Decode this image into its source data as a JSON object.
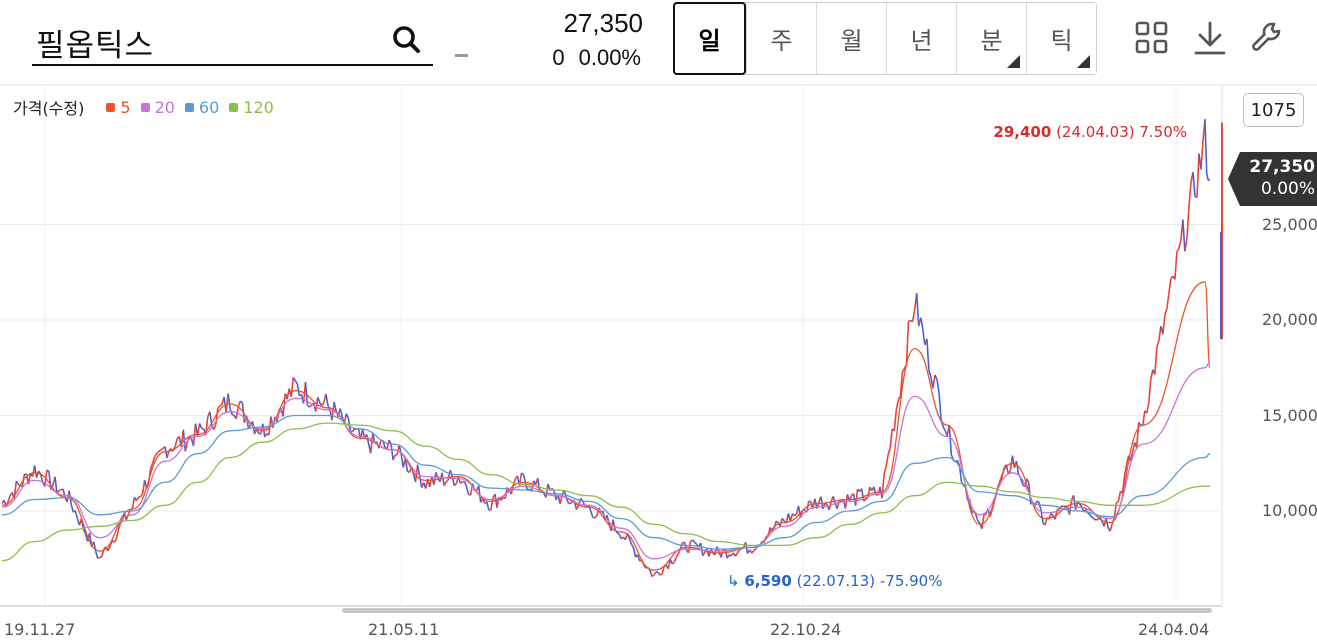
{
  "header": {
    "stock_name": "필옵틱스",
    "price": "27,350",
    "change": "0",
    "change_pct": "0.00%"
  },
  "period_tabs": [
    {
      "label": "일",
      "active": true,
      "has_menu": false
    },
    {
      "label": "주",
      "active": false,
      "has_menu": false
    },
    {
      "label": "월",
      "active": false,
      "has_menu": false
    },
    {
      "label": "년",
      "active": false,
      "has_menu": false
    },
    {
      "label": "분",
      "active": false,
      "has_menu": true
    },
    {
      "label": "틱",
      "active": false,
      "has_menu": true
    }
  ],
  "toolbar_icons": [
    "grid-layout-icon",
    "download-icon",
    "wrench-icon"
  ],
  "legend": {
    "title": "가격(수정)",
    "items": [
      {
        "label": "5",
        "color": "#e8542c"
      },
      {
        "label": "20",
        "color": "#c774d9"
      },
      {
        "label": "60",
        "color": "#5a9ad6"
      },
      {
        "label": "120",
        "color": "#8cbf4a"
      }
    ]
  },
  "zoom": "1075",
  "current": {
    "price": "27,350",
    "pct": "0.00%"
  },
  "annotations": {
    "high": {
      "value": "29,400",
      "detail": "(24.04.03) 7.50%"
    },
    "low": {
      "value": "6,590",
      "detail": "(22.07.13) -75.90%"
    }
  },
  "colors": {
    "up": "#e8423b",
    "down": "#4364d4",
    "grid": "#ececec",
    "tag": "#333333"
  },
  "chart_data": {
    "type": "line",
    "title": "",
    "xlabel": "",
    "ylabel": "",
    "x_tick_labels": [
      "19.11.27",
      "21.05.11",
      "22.10.24",
      "24.04.04"
    ],
    "y_tick_labels": [
      "10,000",
      "15,000",
      "20,000",
      "25,000"
    ],
    "y_ticks": [
      10000,
      15000,
      20000,
      25000
    ],
    "ylim": [
      5000,
      30500
    ],
    "series": [
      {
        "name": "가격(수정)",
        "color": "#e8423b",
        "dates": [
          "19.11",
          "20.01",
          "20.02",
          "20.03",
          "20.04",
          "20.06",
          "20.08",
          "20.10",
          "20.12",
          "21.01",
          "21.02",
          "21.04",
          "21.05",
          "21.07",
          "21.09",
          "21.11",
          "21.12",
          "22.02",
          "22.04",
          "22.06",
          "22.07",
          "22.08",
          "22.10",
          "22.12",
          "23.02",
          "23.04",
          "23.06",
          "23.07",
          "23.08",
          "23.09",
          "23.11",
          "23.12",
          "24.01",
          "24.02",
          "24.03",
          "24.03",
          "24.04",
          "24.04"
        ],
        "values": [
          10400,
          12200,
          10800,
          7500,
          10200,
          13300,
          14000,
          15800,
          14200,
          16500,
          15500,
          13700,
          13200,
          11500,
          11800,
          10400,
          11600,
          10800,
          10200,
          8900,
          6600,
          8200,
          7800,
          8100,
          9500,
          10500,
          10600,
          11000,
          21000,
          14200,
          9000,
          12700,
          9400,
          10500,
          9300,
          14800,
          29400,
          27350
        ]
      },
      {
        "name": "5",
        "color": "#e8542c",
        "values": [
          10300,
          12000,
          10700,
          7900,
          10100,
          13100,
          14000,
          15600,
          14200,
          16300,
          15400,
          13800,
          13200,
          11600,
          11800,
          10500,
          11500,
          10800,
          10200,
          8900,
          6900,
          8100,
          7800,
          8100,
          9400,
          10400,
          10600,
          11000,
          18500,
          14500,
          9300,
          12500,
          9600,
          10400,
          9400,
          14500,
          22000,
          17500
        ]
      },
      {
        "name": "20",
        "color": "#c774d9",
        "values": [
          10200,
          11600,
          10800,
          8600,
          9800,
          12600,
          13900,
          15200,
          14300,
          15900,
          15300,
          13900,
          13200,
          11800,
          11700,
          10600,
          11300,
          10800,
          10300,
          9100,
          7500,
          8000,
          7900,
          8100,
          9200,
          10200,
          10500,
          10900,
          16000,
          13900,
          9800,
          12000,
          9900,
          10200,
          9600,
          13500,
          17500,
          17800
        ]
      },
      {
        "name": "60",
        "color": "#5a9ad6",
        "values": [
          9800,
          10600,
          10700,
          9800,
          10000,
          11500,
          13000,
          14200,
          14400,
          15000,
          15000,
          14300,
          13500,
          12400,
          11900,
          11200,
          11100,
          10900,
          10500,
          9600,
          8600,
          8200,
          8000,
          8100,
          8600,
          9400,
          10000,
          10500,
          12500,
          12800,
          11000,
          10800,
          10300,
          10000,
          9700,
          10800,
          12800,
          13000
        ]
      },
      {
        "name": "120",
        "color": "#8cbf4a",
        "values": [
          7400,
          8400,
          9000,
          9200,
          9500,
          10300,
          11500,
          12800,
          13600,
          14300,
          14600,
          14500,
          14200,
          13400,
          12700,
          11900,
          11400,
          11100,
          10800,
          10200,
          9300,
          8800,
          8400,
          8200,
          8200,
          8600,
          9300,
          9900,
          10800,
          11500,
          11300,
          11000,
          10700,
          10500,
          10300,
          10300,
          11300,
          11300
        ]
      }
    ]
  }
}
